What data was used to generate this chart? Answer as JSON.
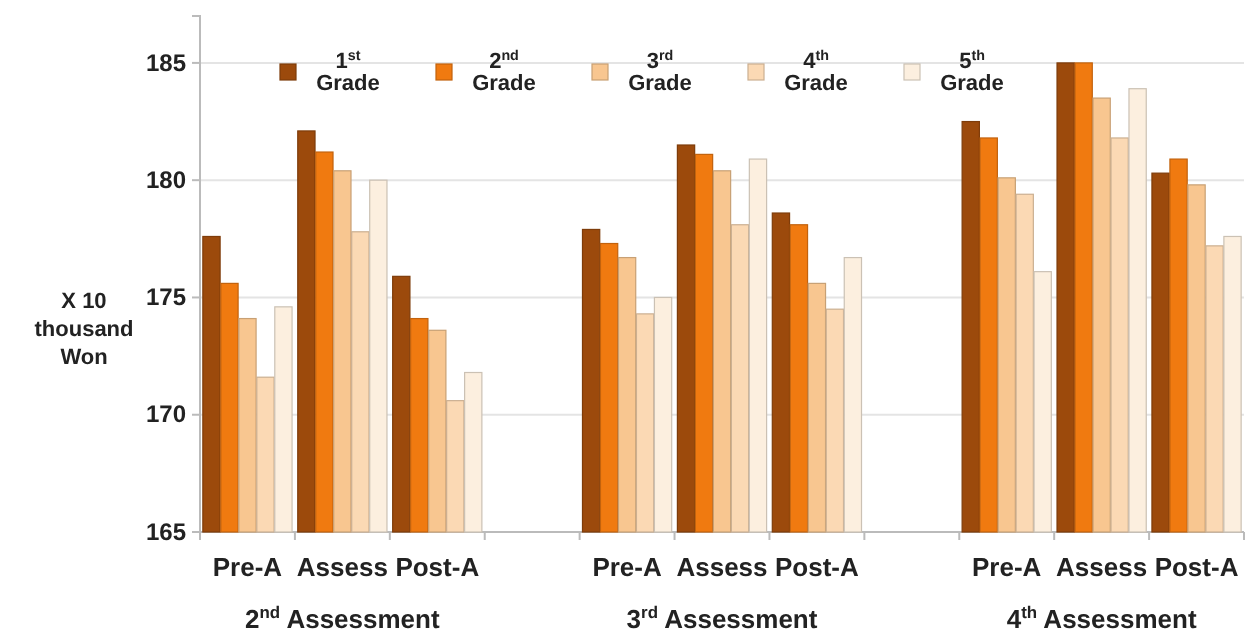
{
  "chart_data": {
    "type": "bar",
    "ylabel": "X 10 thousand Won",
    "categories": [
      "Pre-A",
      "Assess",
      "Post-A",
      null,
      "Pre-A",
      "Assess",
      "Post-A",
      null,
      "Pre-A",
      "Assess",
      "Post-A"
    ],
    "series": [
      {
        "name": "1$^{st}$ Grade",
        "color": "#9c4a0c",
        "values": [
          177.6,
          182.1,
          175.9,
          null,
          177.9,
          181.5,
          178.6,
          null,
          182.5,
          185.0,
          180.3
        ]
      },
      {
        "name": "2$^{nd}$ Grade",
        "color": "#f07a10",
        "values": [
          175.6,
          181.2,
          174.1,
          null,
          177.3,
          181.1,
          178.1,
          null,
          181.8,
          185.0,
          180.9
        ]
      },
      {
        "name": "3$^{rd}$ Grade",
        "color": "#f8c690",
        "values": [
          174.1,
          180.4,
          173.6,
          null,
          176.7,
          180.4,
          175.6,
          null,
          180.1,
          183.5,
          179.8
        ]
      },
      {
        "name": "4$^{th}$ Grade",
        "color": "#fbd9b4",
        "values": [
          171.6,
          177.8,
          170.6,
          null,
          174.3,
          178.1,
          174.5,
          null,
          179.4,
          181.8,
          177.2
        ]
      },
      {
        "name": "5$^{th}$ Grade",
        "color": "#fcefdf",
        "values": [
          174.6,
          180.0,
          171.8,
          null,
          175.0,
          180.9,
          176.7,
          null,
          176.1,
          183.9,
          177.6
        ]
      }
    ],
    "ylim": [
      165,
      187
    ],
    "yticks": [
      165,
      170,
      175,
      180,
      185
    ],
    "grid": "y",
    "legend": "top",
    "annotations": [
      "2$^{nd}$ Assessment",
      "3$^{rd}$ Assessment",
      "4$^{th}$ Assessment"
    ]
  }
}
